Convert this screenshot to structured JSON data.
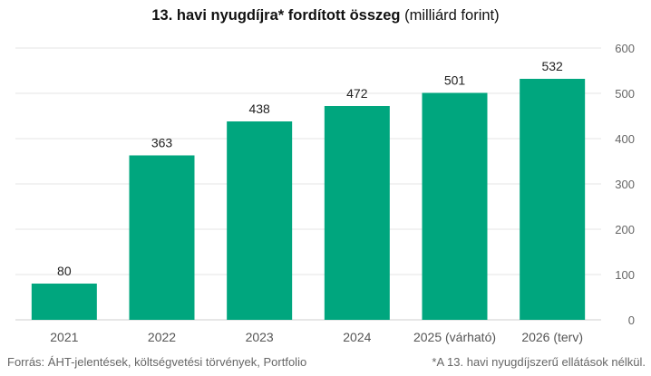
{
  "title_bold": "13. havi nyugdíjra* fordított összeg",
  "title_rest": " (milliárd forint)",
  "source": "Forrás: ÁHT-jelentések, költségvetési törvények, Portfolio",
  "footnote": "*A 13. havi nyugdíjszerű ellátások nélkül.",
  "chart_data": {
    "type": "bar",
    "categories": [
      "2021",
      "2022",
      "2023",
      "2024",
      "2025 (várható)",
      "2026 (terv)"
    ],
    "values": [
      80,
      363,
      438,
      472,
      501,
      532
    ],
    "data_labels": [
      "80",
      "363",
      "438",
      "472",
      "501",
      "532"
    ],
    "ylim": [
      0,
      600
    ],
    "yticks": [
      "0",
      "100",
      "200",
      "300",
      "400",
      "500",
      "600"
    ],
    "y_axis_side": "right",
    "grid": true,
    "bar_color": "#00a67e",
    "xlabel": "",
    "ylabel": ""
  }
}
